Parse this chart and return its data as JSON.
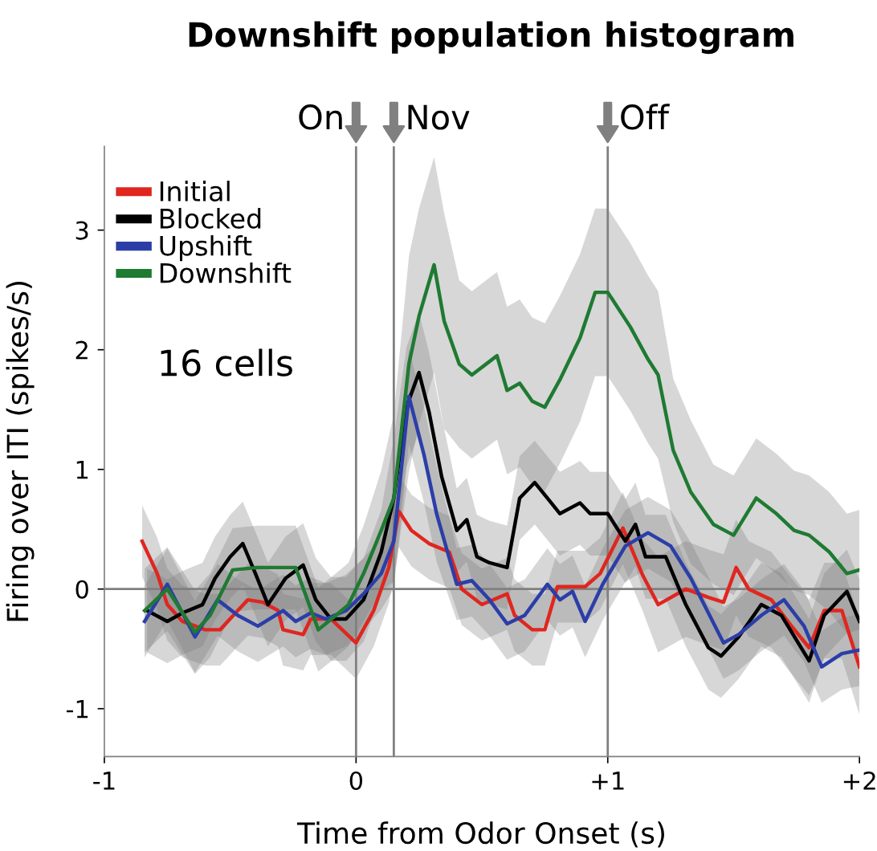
{
  "chart_data": {
    "type": "line",
    "title": "Downshift population histogram",
    "xlabel": "Time from Odor Onset (s)",
    "ylabel": "Firing over ITI (spikes/s)",
    "annotations": [
      "16 cells"
    ],
    "xlim": [
      -1,
      2
    ],
    "xticks": [
      -1,
      0,
      {
        "value": 1,
        "label": "+1"
      },
      {
        "value": 2,
        "label": "+2"
      }
    ],
    "ylim": [
      -1.4,
      3.7
    ],
    "yticks": [
      -1,
      0,
      1,
      2,
      3
    ],
    "grid": false,
    "legend": "top left",
    "line_style": "solid",
    "marker": "none",
    "ref_lines": [
      {
        "axis": "x",
        "value": 0,
        "label": "On",
        "color": "#808080"
      },
      {
        "axis": "x",
        "value": 0.15,
        "label": "Nov",
        "color": "#808080"
      },
      {
        "axis": "x",
        "value": 1,
        "label": "Off",
        "color": "#808080"
      },
      {
        "axis": "y",
        "value": 0,
        "color": "#808080"
      }
    ],
    "series": [
      {
        "name": "Initial",
        "color": "#e0261f",
        "x": [
          -0.85,
          -0.79,
          -0.75,
          -0.69,
          -0.6,
          -0.54,
          -0.47,
          -0.43,
          -0.37,
          -0.31,
          -0.29,
          -0.21,
          -0.18,
          -0.1,
          0,
          0.07,
          0.13,
          0.17,
          0.22,
          0.29,
          0.37,
          0.42,
          0.5,
          0.6,
          0.63,
          0.7,
          0.75,
          0.8,
          0.91,
          0.97,
          1.06,
          1.14,
          1.2,
          1.31,
          1.4,
          1.46,
          1.51,
          1.56,
          1.65,
          1.73,
          1.8,
          1.86,
          1.93,
          2.0
        ],
        "values": [
          0.4,
          0.13,
          -0.13,
          -0.27,
          -0.34,
          -0.34,
          -0.18,
          -0.09,
          -0.11,
          -0.18,
          -0.34,
          -0.38,
          -0.25,
          -0.25,
          -0.45,
          -0.18,
          0.18,
          0.65,
          0.49,
          0.38,
          0.31,
          0.0,
          -0.13,
          -0.04,
          -0.22,
          -0.34,
          -0.34,
          0.02,
          0.02,
          0.13,
          0.51,
          0.11,
          -0.13,
          0,
          -0.07,
          -0.11,
          0.18,
          0,
          -0.09,
          -0.31,
          -0.49,
          -0.18,
          -0.18,
          -0.65
        ],
        "lower": [
          0.1,
          -0.17,
          -0.43,
          -0.57,
          -0.64,
          -0.64,
          -0.48,
          -0.39,
          -0.41,
          -0.48,
          -0.64,
          -0.68,
          -0.55,
          -0.55,
          -0.75,
          -0.48,
          -0.12,
          0.35,
          0.19,
          0.08,
          0.01,
          -0.3,
          -0.43,
          -0.34,
          -0.52,
          -0.64,
          -0.64,
          -0.28,
          -0.28,
          -0.17,
          0.21,
          -0.19,
          -0.53,
          -0.4,
          -0.47,
          -0.51,
          -0.22,
          -0.4,
          -0.49,
          -0.71,
          -0.89,
          -0.58,
          -0.58,
          -1.05
        ],
        "upper": [
          0.7,
          0.43,
          0.17,
          0.03,
          -0.04,
          -0.04,
          0.12,
          0.21,
          0.19,
          0.12,
          -0.04,
          -0.08,
          0.05,
          0.05,
          -0.15,
          0.12,
          0.48,
          0.95,
          0.79,
          0.68,
          0.61,
          0.3,
          0.17,
          0.26,
          0.08,
          -0.04,
          -0.04,
          0.32,
          0.32,
          0.43,
          0.81,
          0.41,
          0.27,
          0.4,
          0.33,
          0.29,
          0.58,
          0.4,
          0.31,
          0.09,
          -0.09,
          0.22,
          0.22,
          -0.25
        ]
      },
      {
        "name": "Blocked",
        "color": "#000000",
        "x": [
          -0.83,
          -0.75,
          -0.69,
          -0.61,
          -0.56,
          -0.5,
          -0.45,
          -0.4,
          -0.35,
          -0.28,
          -0.21,
          -0.16,
          -0.1,
          -0.04,
          0.03,
          0.1,
          0.15,
          0.2,
          0.25,
          0.29,
          0.34,
          0.4,
          0.44,
          0.48,
          0.53,
          0.6,
          0.65,
          0.71,
          0.76,
          0.81,
          0.89,
          0.93,
          1.0,
          1.07,
          1.11,
          1.15,
          1.23,
          1.31,
          1.4,
          1.45,
          1.52,
          1.61,
          1.69,
          1.8,
          1.86,
          1.95,
          2.0
        ],
        "values": [
          -0.18,
          -0.27,
          -0.2,
          -0.13,
          0.09,
          0.27,
          0.38,
          0.13,
          -0.13,
          0.09,
          0.2,
          -0.09,
          -0.25,
          -0.25,
          -0.09,
          0.31,
          0.76,
          1.52,
          1.81,
          1.48,
          0.94,
          0.49,
          0.58,
          0.27,
          0.22,
          0.18,
          0.76,
          0.89,
          0.76,
          0.63,
          0.72,
          0.63,
          0.63,
          0.4,
          0.54,
          0.27,
          0.27,
          -0.13,
          -0.49,
          -0.56,
          -0.4,
          -0.13,
          -0.22,
          -0.6,
          -0.22,
          -0.02,
          -0.27
        ],
        "lower": [
          -0.53,
          -0.62,
          -0.55,
          -0.48,
          -0.26,
          -0.08,
          0.03,
          -0.22,
          -0.48,
          -0.26,
          -0.15,
          -0.44,
          -0.6,
          -0.6,
          -0.44,
          -0.04,
          0.26,
          1.02,
          1.31,
          0.98,
          0.44,
          0.14,
          0.23,
          -0.08,
          -0.13,
          -0.17,
          0.41,
          0.54,
          0.41,
          0.28,
          0.37,
          0.28,
          0.28,
          0.05,
          0.19,
          -0.08,
          -0.08,
          -0.48,
          -0.84,
          -0.91,
          -0.75,
          -0.48,
          -0.57,
          -0.95,
          -0.57,
          -0.37,
          -0.62
        ],
        "upper": [
          0.17,
          0.08,
          0.15,
          0.22,
          0.44,
          0.62,
          0.73,
          0.48,
          0.22,
          0.44,
          0.55,
          0.26,
          0.1,
          0.1,
          0.26,
          0.66,
          1.26,
          2.02,
          2.31,
          1.98,
          1.44,
          0.84,
          0.93,
          0.62,
          0.57,
          0.53,
          1.11,
          1.24,
          1.11,
          0.98,
          1.07,
          0.98,
          0.98,
          0.75,
          0.89,
          0.62,
          0.62,
          0.22,
          -0.14,
          -0.21,
          -0.05,
          0.22,
          0.13,
          -0.25,
          0.13,
          0.33,
          0.08
        ]
      },
      {
        "name": "Upshift",
        "color": "#2b3ea8",
        "x": [
          -0.84,
          -0.75,
          -0.64,
          -0.55,
          -0.47,
          -0.39,
          -0.29,
          -0.24,
          -0.18,
          -0.12,
          -0.04,
          0.03,
          0.1,
          0.15,
          0.21,
          0.27,
          0.32,
          0.4,
          0.46,
          0.53,
          0.6,
          0.67,
          0.76,
          0.81,
          0.86,
          0.91,
          0.98,
          1.07,
          1.16,
          1.25,
          1.33,
          1.46,
          1.52,
          1.61,
          1.7,
          1.78,
          1.85,
          1.93,
          2.0
        ],
        "values": [
          -0.27,
          0.04,
          -0.4,
          -0.09,
          -0.22,
          -0.31,
          -0.18,
          -0.27,
          -0.2,
          -0.25,
          -0.18,
          -0.04,
          0.13,
          0.4,
          1.61,
          1.12,
          0.63,
          0.04,
          0.07,
          -0.09,
          -0.29,
          -0.22,
          0.04,
          -0.09,
          -0.02,
          -0.27,
          0.04,
          0.36,
          0.47,
          0.36,
          0.09,
          -0.45,
          -0.38,
          -0.22,
          -0.09,
          -0.31,
          -0.65,
          -0.54,
          -0.51
        ],
        "lower": [
          -0.57,
          -0.26,
          -0.7,
          -0.39,
          -0.52,
          -0.61,
          -0.48,
          -0.57,
          -0.5,
          -0.55,
          -0.48,
          -0.34,
          -0.17,
          0,
          1.21,
          0.72,
          0.23,
          -0.26,
          -0.23,
          -0.39,
          -0.59,
          -0.52,
          -0.26,
          -0.39,
          -0.32,
          -0.57,
          -0.26,
          0.06,
          0.17,
          0.06,
          -0.21,
          -0.75,
          -0.68,
          -0.52,
          -0.39,
          -0.61,
          -0.95,
          -0.84,
          -0.81
        ],
        "upper": [
          0.03,
          0.34,
          -0.1,
          0.21,
          0.08,
          -0.01,
          0.12,
          0.03,
          0.1,
          0.05,
          0.12,
          0.26,
          0.43,
          0.8,
          2.01,
          1.52,
          1.03,
          0.34,
          0.37,
          0.21,
          0.01,
          0.08,
          0.34,
          0.21,
          0.28,
          0.03,
          0.34,
          0.66,
          0.77,
          0.66,
          0.39,
          -0.15,
          -0.08,
          0.08,
          0.21,
          -0.01,
          -0.35,
          -0.24,
          -0.21
        ]
      },
      {
        "name": "Downshift",
        "color": "#1f7a32",
        "x": [
          -0.84,
          -0.75,
          -0.64,
          -0.58,
          -0.49,
          -0.39,
          -0.24,
          -0.15,
          -0.08,
          -0.03,
          0.03,
          0.1,
          0.15,
          0.21,
          0.25,
          0.31,
          0.35,
          0.41,
          0.46,
          0.56,
          0.6,
          0.65,
          0.7,
          0.75,
          0.81,
          0.89,
          0.95,
          1.0,
          1.09,
          1.16,
          1.2,
          1.26,
          1.33,
          1.42,
          1.5,
          1.59,
          1.67,
          1.74,
          1.8,
          1.88,
          1.95,
          2.0
        ],
        "values": [
          -0.18,
          0,
          -0.36,
          -0.22,
          0.16,
          0.18,
          0.18,
          -0.34,
          -0.22,
          -0.13,
          0.13,
          0.49,
          0.76,
          1.88,
          2.28,
          2.71,
          2.24,
          1.88,
          1.79,
          1.95,
          1.66,
          1.72,
          1.57,
          1.52,
          1.75,
          2.1,
          2.48,
          2.48,
          2.19,
          1.92,
          1.79,
          1.16,
          0.81,
          0.54,
          0.45,
          0.76,
          0.63,
          0.49,
          0.45,
          0.31,
          0.13,
          0.16
        ],
        "lower": [
          -0.53,
          -0.35,
          -0.71,
          -0.57,
          -0.19,
          -0.17,
          -0.17,
          -0.69,
          -0.57,
          -0.48,
          -0.27,
          -0.01,
          0.06,
          0.98,
          1.38,
          1.81,
          1.34,
          1.18,
          1.09,
          1.25,
          0.96,
          1.02,
          0.87,
          0.82,
          1.05,
          1.4,
          1.78,
          1.78,
          1.49,
          1.22,
          1.09,
          0.56,
          0.21,
          0.04,
          -0.05,
          0.26,
          0.13,
          -0.01,
          -0.05,
          -0.19,
          -0.37,
          -0.34
        ],
        "upper": [
          0.17,
          0.35,
          -0.01,
          0.13,
          0.51,
          0.53,
          0.53,
          0.01,
          0.13,
          0.22,
          0.53,
          0.99,
          1.46,
          2.78,
          3.18,
          3.61,
          3.14,
          2.58,
          2.49,
          2.65,
          2.36,
          2.42,
          2.27,
          2.22,
          2.45,
          2.8,
          3.18,
          3.18,
          2.89,
          2.62,
          2.49,
          1.76,
          1.41,
          1.04,
          0.95,
          1.26,
          1.13,
          0.99,
          0.95,
          0.81,
          0.63,
          0.66
        ]
      }
    ]
  }
}
